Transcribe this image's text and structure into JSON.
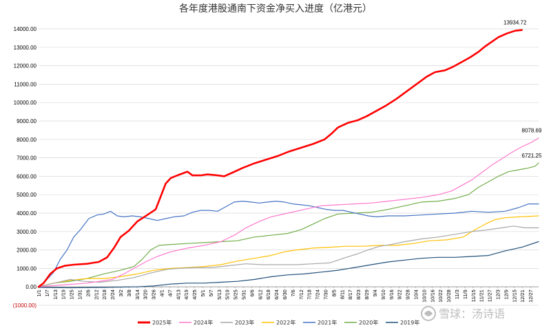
{
  "chart_data": {
    "type": "line",
    "title": "各年度港股通南下资金净买入进度（亿港元）",
    "ylim": [
      -1000,
      14000
    ],
    "y_ticks": [
      "(1000.00)",
      "0.00",
      "1000.00",
      "2000.00",
      "3000.00",
      "4000.00",
      "5000.00",
      "6000.00",
      "7000.00",
      "8000.00",
      "9000.00",
      "10000.00",
      "11000.00",
      "12000.00",
      "13000.00",
      "14000.00"
    ],
    "x_ticks": [
      "1/1",
      "1/7",
      "1/13",
      "1/19",
      "1/25",
      "1/31",
      "2/6",
      "2/12",
      "2/18",
      "2/24",
      "3/2",
      "3/8",
      "3/14",
      "3/20",
      "3/26",
      "4/1",
      "4/7",
      "4/13",
      "4/19",
      "4/25",
      "5/1",
      "5/7",
      "5/13",
      "5/19",
      "5/25",
      "5/31",
      "6/6",
      "6/12",
      "6/18",
      "6/24",
      "6/30",
      "7/6",
      "7/12",
      "7/18",
      "7/24",
      "7/30",
      "8/5",
      "8/11",
      "8/17",
      "8/23",
      "8/29",
      "9/4",
      "9/10",
      "9/16",
      "9/22",
      "9/28",
      "10/4",
      "10/10",
      "10/16",
      "10/22",
      "10/28",
      "11/3",
      "11/9",
      "11/15",
      "11/21",
      "11/27",
      "12/3",
      "12/9",
      "12/15",
      "12/21",
      "12/27"
    ],
    "grid": true,
    "legend_position": "bottom",
    "series": [
      {
        "name": "2025年",
        "color": "#ff0000",
        "width": 2.6,
        "end_label": "13934.72",
        "points": [
          [
            1,
            0
          ],
          [
            4,
            200
          ],
          [
            8,
            700
          ],
          [
            12,
            1000
          ],
          [
            17,
            1150
          ],
          [
            22,
            1200
          ],
          [
            30,
            1250
          ],
          [
            37,
            1350
          ],
          [
            42,
            1600
          ],
          [
            46,
            2100
          ],
          [
            50,
            2700
          ],
          [
            55,
            3050
          ],
          [
            60,
            3550
          ],
          [
            66,
            3900
          ],
          [
            71,
            4200
          ],
          [
            74,
            4900
          ],
          [
            77,
            5600
          ],
          [
            80,
            5900
          ],
          [
            84,
            6050
          ],
          [
            87,
            6150
          ],
          [
            90,
            6250
          ],
          [
            93,
            6050
          ],
          [
            98,
            6050
          ],
          [
            102,
            6100
          ],
          [
            108,
            6050
          ],
          [
            112,
            6000
          ],
          [
            117,
            6200
          ],
          [
            123,
            6450
          ],
          [
            130,
            6700
          ],
          [
            137,
            6900
          ],
          [
            144,
            7100
          ],
          [
            151,
            7350
          ],
          [
            158,
            7550
          ],
          [
            165,
            7750
          ],
          [
            172,
            8000
          ],
          [
            176,
            8300
          ],
          [
            180,
            8650
          ],
          [
            186,
            8900
          ],
          [
            192,
            9050
          ],
          [
            197,
            9250
          ],
          [
            203,
            9550
          ],
          [
            209,
            9850
          ],
          [
            215,
            10200
          ],
          [
            221,
            10600
          ],
          [
            227,
            11000
          ],
          [
            233,
            11400
          ],
          [
            238,
            11650
          ],
          [
            244,
            11750
          ],
          [
            249,
            11950
          ],
          [
            254,
            12200
          ],
          [
            259,
            12450
          ],
          [
            264,
            12750
          ],
          [
            268,
            13050
          ],
          [
            272,
            13300
          ],
          [
            276,
            13550
          ],
          [
            281,
            13750
          ],
          [
            286,
            13900
          ],
          [
            290,
            13935
          ]
        ]
      },
      {
        "name": "2024年",
        "color": "#ff77cc",
        "width": 1.2,
        "end_label": "8078.69",
        "points": [
          [
            1,
            0
          ],
          [
            15,
            100
          ],
          [
            30,
            200
          ],
          [
            45,
            400
          ],
          [
            52,
            700
          ],
          [
            58,
            1000
          ],
          [
            65,
            1350
          ],
          [
            72,
            1650
          ],
          [
            80,
            1900
          ],
          [
            90,
            2100
          ],
          [
            100,
            2250
          ],
          [
            110,
            2450
          ],
          [
            118,
            2800
          ],
          [
            125,
            3200
          ],
          [
            133,
            3550
          ],
          [
            140,
            3800
          ],
          [
            150,
            4000
          ],
          [
            160,
            4200
          ],
          [
            170,
            4400
          ],
          [
            180,
            4450
          ],
          [
            190,
            4500
          ],
          [
            200,
            4550
          ],
          [
            210,
            4650
          ],
          [
            220,
            4750
          ],
          [
            230,
            4850
          ],
          [
            240,
            5000
          ],
          [
            248,
            5200
          ],
          [
            254,
            5500
          ],
          [
            260,
            5800
          ],
          [
            266,
            6200
          ],
          [
            272,
            6600
          ],
          [
            278,
            6950
          ],
          [
            284,
            7300
          ],
          [
            290,
            7600
          ],
          [
            296,
            7850
          ],
          [
            300,
            8079
          ]
        ]
      },
      {
        "name": "2023年",
        "color": "#a6a6a6",
        "width": 1.2,
        "end_label": "",
        "points": [
          [
            1,
            0
          ],
          [
            8,
            150
          ],
          [
            15,
            300
          ],
          [
            20,
            400
          ],
          [
            28,
            300
          ],
          [
            38,
            250
          ],
          [
            48,
            350
          ],
          [
            58,
            500
          ],
          [
            68,
            750
          ],
          [
            78,
            950
          ],
          [
            85,
            1000
          ],
          [
            95,
            1050
          ],
          [
            105,
            1050
          ],
          [
            115,
            1150
          ],
          [
            125,
            1250
          ],
          [
            135,
            1200
          ],
          [
            145,
            1200
          ],
          [
            155,
            1200
          ],
          [
            165,
            1250
          ],
          [
            175,
            1300
          ],
          [
            185,
            1600
          ],
          [
            192,
            1800
          ],
          [
            198,
            2000
          ],
          [
            205,
            2200
          ],
          [
            212,
            2300
          ],
          [
            220,
            2450
          ],
          [
            230,
            2600
          ],
          [
            240,
            2700
          ],
          [
            250,
            2850
          ],
          [
            260,
            3000
          ],
          [
            270,
            3100
          ],
          [
            278,
            3200
          ],
          [
            285,
            3300
          ],
          [
            292,
            3200
          ],
          [
            300,
            3200
          ]
        ]
      },
      {
        "name": "2022年",
        "color": "#ffc000",
        "width": 1.2,
        "end_label": "",
        "points": [
          [
            1,
            0
          ],
          [
            10,
            200
          ],
          [
            20,
            350
          ],
          [
            30,
            450
          ],
          [
            40,
            450
          ],
          [
            50,
            550
          ],
          [
            60,
            700
          ],
          [
            70,
            900
          ],
          [
            80,
            1000
          ],
          [
            90,
            1050
          ],
          [
            100,
            1100
          ],
          [
            110,
            1200
          ],
          [
            120,
            1400
          ],
          [
            130,
            1550
          ],
          [
            140,
            1700
          ],
          [
            148,
            1900
          ],
          [
            155,
            2000
          ],
          [
            165,
            2100
          ],
          [
            175,
            2150
          ],
          [
            185,
            2200
          ],
          [
            195,
            2200
          ],
          [
            205,
            2250
          ],
          [
            215,
            2250
          ],
          [
            225,
            2350
          ],
          [
            235,
            2500
          ],
          [
            245,
            2550
          ],
          [
            255,
            2700
          ],
          [
            262,
            3100
          ],
          [
            268,
            3400
          ],
          [
            274,
            3650
          ],
          [
            280,
            3750
          ],
          [
            288,
            3800
          ],
          [
            300,
            3850
          ]
        ]
      },
      {
        "name": "2021年",
        "color": "#4472c4",
        "width": 1.2,
        "end_label": "",
        "points": [
          [
            1,
            0
          ],
          [
            5,
            300
          ],
          [
            10,
            800
          ],
          [
            14,
            1500
          ],
          [
            18,
            2000
          ],
          [
            22,
            2700
          ],
          [
            26,
            3100
          ],
          [
            31,
            3700
          ],
          [
            36,
            3900
          ],
          [
            40,
            3950
          ],
          [
            44,
            4100
          ],
          [
            48,
            3850
          ],
          [
            52,
            3800
          ],
          [
            57,
            3850
          ],
          [
            62,
            3800
          ],
          [
            67,
            3700
          ],
          [
            72,
            3600
          ],
          [
            77,
            3700
          ],
          [
            82,
            3800
          ],
          [
            88,
            3850
          ],
          [
            93,
            4050
          ],
          [
            98,
            4150
          ],
          [
            103,
            4150
          ],
          [
            108,
            4100
          ],
          [
            113,
            4350
          ],
          [
            118,
            4600
          ],
          [
            123,
            4650
          ],
          [
            128,
            4600
          ],
          [
            133,
            4550
          ],
          [
            138,
            4600
          ],
          [
            143,
            4650
          ],
          [
            148,
            4600
          ],
          [
            153,
            4500
          ],
          [
            158,
            4450
          ],
          [
            163,
            4400
          ],
          [
            168,
            4300
          ],
          [
            173,
            4200
          ],
          [
            178,
            4150
          ],
          [
            183,
            4150
          ],
          [
            188,
            4050
          ],
          [
            193,
            3950
          ],
          [
            198,
            3850
          ],
          [
            203,
            3800
          ],
          [
            210,
            3850
          ],
          [
            220,
            3850
          ],
          [
            230,
            3900
          ],
          [
            240,
            3950
          ],
          [
            250,
            4000
          ],
          [
            260,
            4100
          ],
          [
            270,
            4050
          ],
          [
            280,
            4100
          ],
          [
            288,
            4300
          ],
          [
            294,
            4500
          ],
          [
            300,
            4500
          ]
        ]
      },
      {
        "name": "2020年",
        "color": "#70ad47",
        "width": 1.2,
        "end_label": "6721.25",
        "points": [
          [
            1,
            0
          ],
          [
            10,
            200
          ],
          [
            20,
            300
          ],
          [
            30,
            450
          ],
          [
            40,
            700
          ],
          [
            50,
            900
          ],
          [
            58,
            1100
          ],
          [
            63,
            1500
          ],
          [
            68,
            2000
          ],
          [
            73,
            2250
          ],
          [
            80,
            2300
          ],
          [
            90,
            2350
          ],
          [
            100,
            2400
          ],
          [
            110,
            2450
          ],
          [
            120,
            2500
          ],
          [
            130,
            2700
          ],
          [
            140,
            2800
          ],
          [
            150,
            2900
          ],
          [
            158,
            3100
          ],
          [
            165,
            3400
          ],
          [
            172,
            3700
          ],
          [
            180,
            3950
          ],
          [
            190,
            4000
          ],
          [
            200,
            4050
          ],
          [
            210,
            4200
          ],
          [
            220,
            4400
          ],
          [
            230,
            4600
          ],
          [
            240,
            4650
          ],
          [
            250,
            4800
          ],
          [
            258,
            5000
          ],
          [
            264,
            5400
          ],
          [
            270,
            5700
          ],
          [
            276,
            6000
          ],
          [
            282,
            6250
          ],
          [
            288,
            6350
          ],
          [
            294,
            6450
          ],
          [
            298,
            6550
          ],
          [
            300,
            6721
          ]
        ]
      },
      {
        "name": "2019年",
        "color": "#1f4e79",
        "width": 1.2,
        "end_label": "",
        "points": [
          [
            1,
            -30
          ],
          [
            20,
            -50
          ],
          [
            40,
            -30
          ],
          [
            60,
            0
          ],
          [
            70,
            50
          ],
          [
            80,
            150
          ],
          [
            90,
            200
          ],
          [
            100,
            200
          ],
          [
            110,
            250
          ],
          [
            120,
            300
          ],
          [
            130,
            400
          ],
          [
            140,
            550
          ],
          [
            150,
            650
          ],
          [
            160,
            700
          ],
          [
            170,
            800
          ],
          [
            180,
            900
          ],
          [
            190,
            1050
          ],
          [
            200,
            1200
          ],
          [
            210,
            1350
          ],
          [
            220,
            1450
          ],
          [
            230,
            1550
          ],
          [
            240,
            1600
          ],
          [
            250,
            1600
          ],
          [
            260,
            1650
          ],
          [
            270,
            1700
          ],
          [
            280,
            1950
          ],
          [
            290,
            2150
          ],
          [
            300,
            2450
          ]
        ]
      }
    ]
  },
  "watermark": "雪球：汤诗语"
}
